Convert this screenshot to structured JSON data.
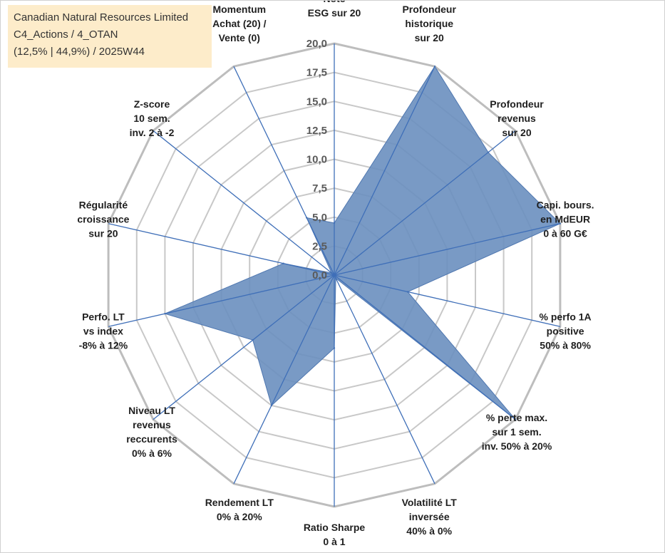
{
  "info": {
    "company": "Canadian Natural Resources Limited",
    "portfolio": "C4_Actions / 4_OTAN",
    "stats": "(12,5% | 44,9%) / 2025W44"
  },
  "chart_data": {
    "type": "radar",
    "title": "Canadian Natural Resources Limited",
    "rmin": 0,
    "rmax": 20,
    "ticks": [
      "0,0",
      "2,5",
      "5,0",
      "7,5",
      "10,0",
      "12,5",
      "15,0",
      "17,5",
      "20,0"
    ],
    "axes": [
      [
        "Note",
        "ESG sur 20"
      ],
      [
        "Profondeur",
        "historique",
        "sur 20"
      ],
      [
        "Profondeur",
        "revenus",
        "sur 20"
      ],
      [
        "Capi. bours.",
        "en MdEUR",
        "0 à 60 G€"
      ],
      [
        "% perfo 1A",
        "positive",
        "50% à 80%"
      ],
      [
        "% perte max.",
        "sur 1 sem.",
        "inv. 50% à 20%"
      ],
      [
        "Volatilité LT",
        "inversée",
        "40% à 0%"
      ],
      [
        "Ratio Sharpe",
        "0 à 1"
      ],
      [
        "Rendement LT",
        "0% à 20%"
      ],
      [
        "Niveau LT",
        "revenus",
        "reccurents",
        "0% à 6%"
      ],
      [
        "Perfo. LT",
        "vs index",
        "-8% à 12%"
      ],
      [
        "Régularité",
        "croissance",
        "sur 20"
      ],
      [
        "Z-score",
        "10 sem.",
        "inv. 2 à -2"
      ],
      [
        "Momentum",
        "Achat (20) /",
        "Vente (0)"
      ]
    ],
    "series": [
      {
        "name": "Canadian Natural Resources Limited",
        "color": "#6a8fbf",
        "values": [
          4.5,
          20,
          17,
          20,
          6.5,
          20,
          0.3,
          6.3,
          12.5,
          9,
          15,
          4.5,
          0.3,
          5.5
        ]
      }
    ]
  }
}
